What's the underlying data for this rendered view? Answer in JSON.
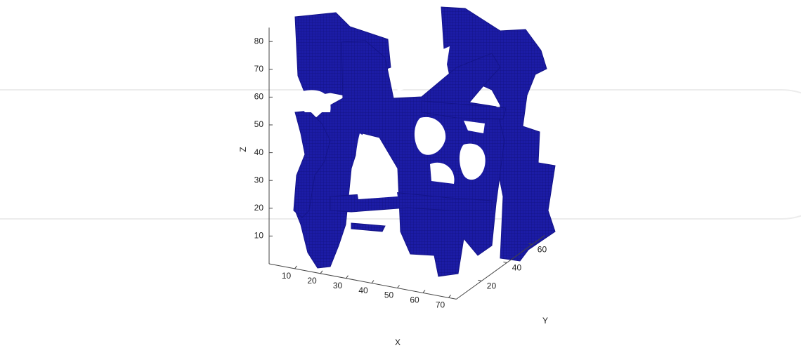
{
  "chart_data": {
    "type": "voxel3d",
    "x_label": "X",
    "y_label": "Y",
    "z_label": "Z",
    "xlim": [
      0,
      73
    ],
    "xticks": [
      10,
      20,
      30,
      40,
      50,
      60,
      70
    ],
    "ylim": [
      0,
      70
    ],
    "yticks": [
      20,
      40,
      60
    ],
    "zlim": [
      0,
      85
    ],
    "zticks": [
      10,
      20,
      30,
      40,
      50,
      60,
      70,
      80
    ],
    "color": "#1c1ca6"
  }
}
